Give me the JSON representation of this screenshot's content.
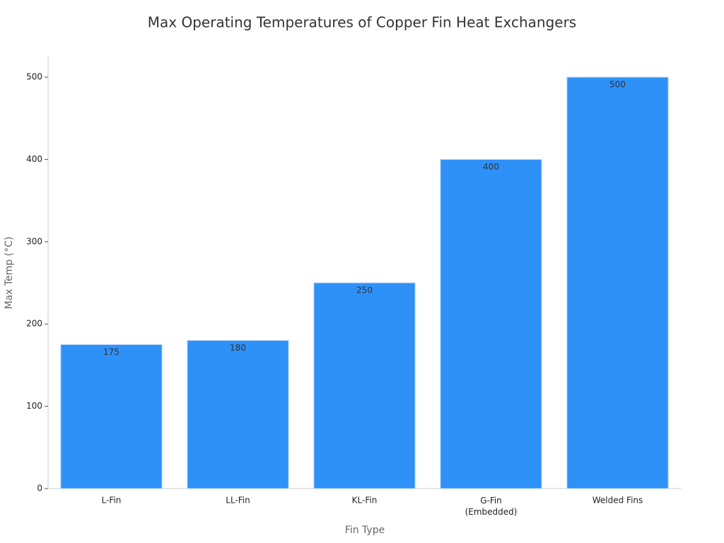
{
  "chart_data": {
    "type": "bar",
    "title": "Max Operating Temperatures of Copper Fin Heat Exchangers",
    "x_label": "Fin Type",
    "y_label": "Max Temp (°C)",
    "categories": [
      "L-Fin",
      "LL-Fin",
      "KL-Fin",
      "G-Fin\n(Embedded)",
      "Welded Fins"
    ],
    "values": [
      175,
      180,
      250,
      400,
      500
    ],
    "color": "#2e91f8",
    "ylim": [
      0,
      525
    ],
    "yticks": [
      0,
      100,
      200,
      300,
      400,
      500
    ],
    "grid": false
  }
}
